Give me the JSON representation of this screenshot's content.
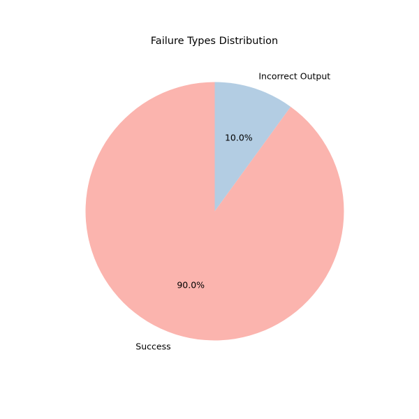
{
  "chart_data": {
    "type": "pie",
    "title": "Failure Types Distribution",
    "start_angle_deg": 90,
    "direction": "clockwise",
    "legend": "none",
    "slices": [
      {
        "label": "Incorrect Output",
        "value": 10.0,
        "pct_label": "10.0%",
        "color": "#b3cde3"
      },
      {
        "label": "Success",
        "value": 90.0,
        "pct_label": "90.0%",
        "color": "#fbb4ae"
      }
    ]
  }
}
